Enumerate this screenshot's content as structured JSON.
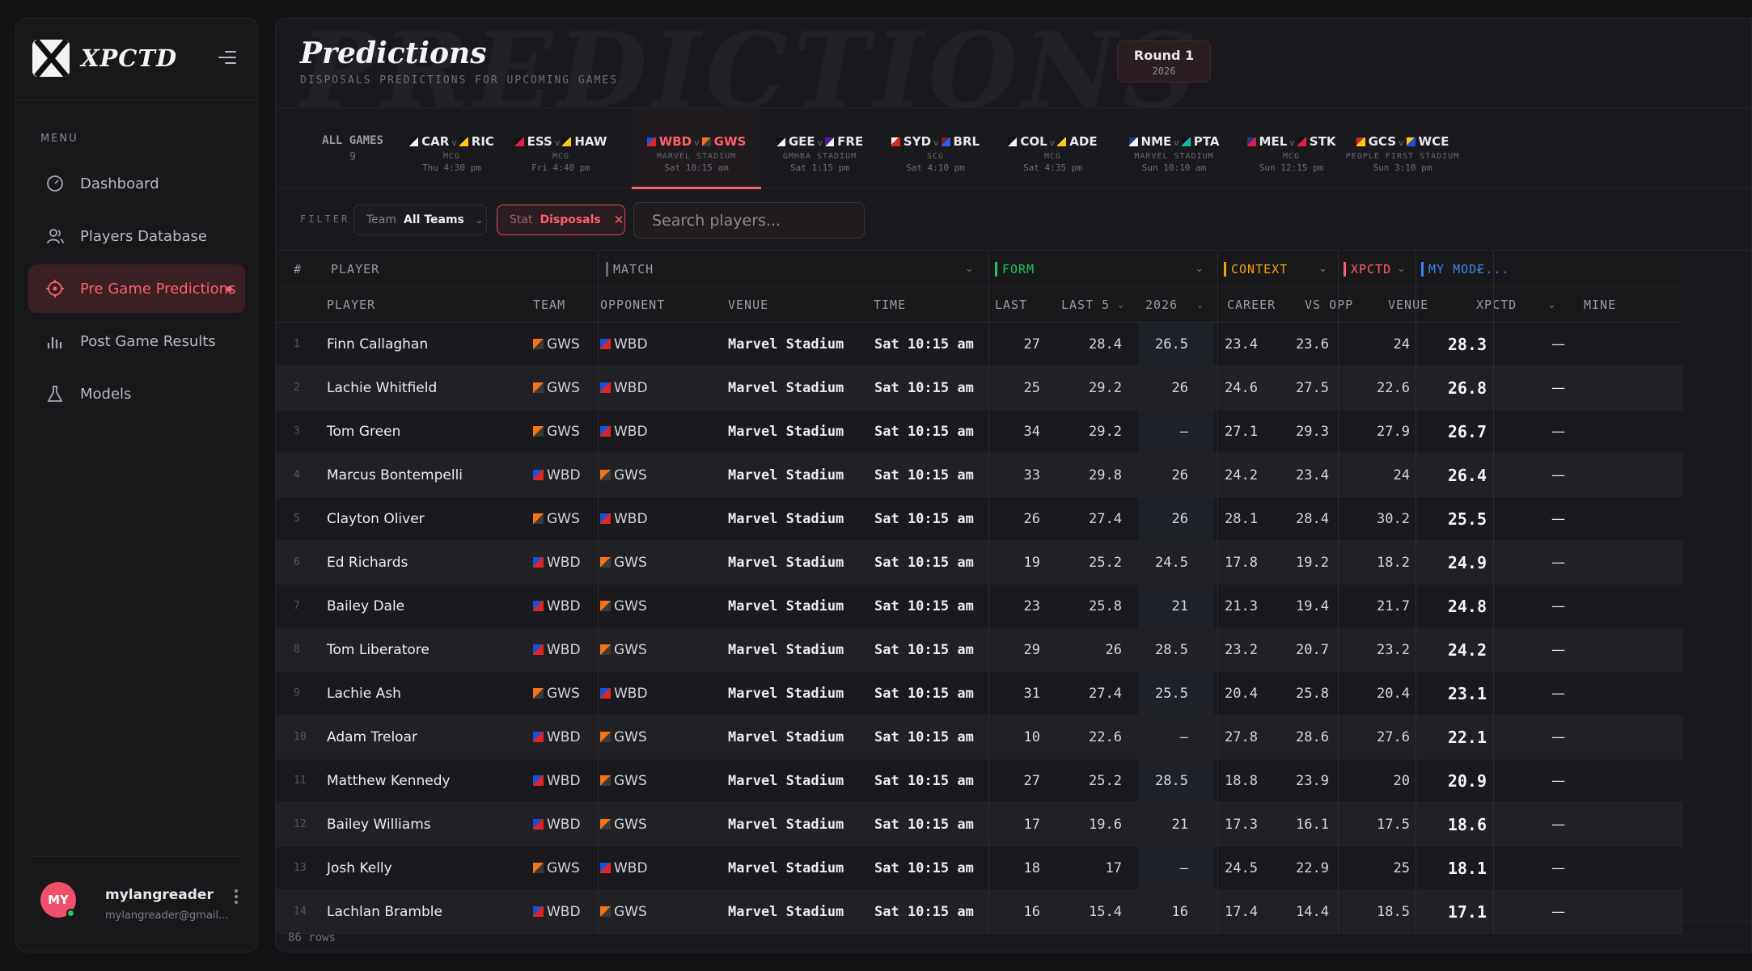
{
  "brand": {
    "name": "XPCTD"
  },
  "sidebar": {
    "menu_label": "MENU",
    "items": [
      {
        "label": "Dashboard",
        "icon": "gauge-icon"
      },
      {
        "label": "Players Database",
        "icon": "users-icon"
      },
      {
        "label": "Pre Game Predictions",
        "icon": "crosshair-icon",
        "active": true
      },
      {
        "label": "Post Game Results",
        "icon": "bar-chart-icon"
      },
      {
        "label": "Models",
        "icon": "flask-icon"
      }
    ],
    "user": {
      "initials": "MY",
      "name": "mylangreader",
      "email": "mylangreader@gmail..."
    }
  },
  "header": {
    "watermark": "PREDICTIONS",
    "title": "Predictions",
    "subtitle": "DISPOSALS PREDICTIONS FOR UPCOMING GAMES",
    "round": {
      "label": "Round 1",
      "year": "2026"
    }
  },
  "games": {
    "all": {
      "label": "ALL GAMES",
      "count": "9"
    },
    "list": [
      {
        "home": "CAR",
        "away": "RIC",
        "venue": "MCG",
        "time": "Thu 4:30 pm"
      },
      {
        "home": "ESS",
        "away": "HAW",
        "venue": "MCG",
        "time": "Fri 4:40 pm"
      },
      {
        "home": "WBD",
        "away": "GWS",
        "venue": "MARVEL STADIUM",
        "time": "Sat 10:15 am",
        "active": true
      },
      {
        "home": "GEE",
        "away": "FRE",
        "venue": "GMHBA STADIUM",
        "time": "Sat 1:15 pm"
      },
      {
        "home": "SYD",
        "away": "BRL",
        "venue": "SCG",
        "time": "Sat 4:10 pm"
      },
      {
        "home": "COL",
        "away": "ADE",
        "venue": "MCG",
        "time": "Sat 4:35 pm"
      },
      {
        "home": "NME",
        "away": "PTA",
        "venue": "MARVEL STADIUM",
        "time": "Sun 10:10 am"
      },
      {
        "home": "MEL",
        "away": "STK",
        "venue": "MCG",
        "time": "Sun 12:15 pm"
      },
      {
        "home": "GCS",
        "away": "WCE",
        "venue": "PEOPLE FIRST STADIUM",
        "time": "Sun 3:10 pm"
      }
    ],
    "separator": "v"
  },
  "filters": {
    "label": "FILTER",
    "team": {
      "key": "Team",
      "value": "All Teams"
    },
    "stat": {
      "key": "Stat",
      "value": "Disposals"
    },
    "search_placeholder": "Search players..."
  },
  "table": {
    "groups": {
      "num": "#",
      "player": "PLAYER",
      "match": "MATCH",
      "form": "FORM",
      "context": "CONTEXT",
      "xpctd": "XPCTD",
      "my_model": "MY MODE..."
    },
    "group_colors": {
      "match": "#6b6b73",
      "form": "#22c55e",
      "context": "#f59e0b",
      "xpctd": "#ff5f6d",
      "my_model": "#3b82f6"
    },
    "columns": {
      "player": "PLAYER",
      "team": "TEAM",
      "opponent": "OPPONENT",
      "venue": "VENUE",
      "time": "TIME",
      "last": "LAST",
      "last5": "LAST 5",
      "y2026": "2026",
      "career": "CAREER",
      "vs_opp": "VS OPP",
      "venue_avg": "VENUE",
      "xpctd": "XPCTD",
      "mine": "MINE"
    },
    "rows": [
      {
        "n": "1",
        "player": "Finn Callaghan",
        "team": "GWS",
        "opp": "WBD",
        "venue": "Marvel Stadium",
        "time": "Sat 10:15 am",
        "last": "27",
        "last5": "28.4",
        "y2026": "26.5",
        "career": "23.4",
        "vs_opp": "23.6",
        "venue_avg": "24",
        "xpctd": "28.3",
        "mine": "—"
      },
      {
        "n": "2",
        "player": "Lachie Whitfield",
        "team": "GWS",
        "opp": "WBD",
        "venue": "Marvel Stadium",
        "time": "Sat 10:15 am",
        "last": "25",
        "last5": "29.2",
        "y2026": "26",
        "career": "24.6",
        "vs_opp": "27.5",
        "venue_avg": "22.6",
        "xpctd": "26.8",
        "mine": "—"
      },
      {
        "n": "3",
        "player": "Tom Green",
        "team": "GWS",
        "opp": "WBD",
        "venue": "Marvel Stadium",
        "time": "Sat 10:15 am",
        "last": "34",
        "last5": "29.2",
        "y2026": "—",
        "career": "27.1",
        "vs_opp": "29.3",
        "venue_avg": "27.9",
        "xpctd": "26.7",
        "mine": "—"
      },
      {
        "n": "4",
        "player": "Marcus Bontempelli",
        "team": "WBD",
        "opp": "GWS",
        "venue": "Marvel Stadium",
        "time": "Sat 10:15 am",
        "last": "33",
        "last5": "29.8",
        "y2026": "26",
        "career": "24.2",
        "vs_opp": "23.4",
        "venue_avg": "24",
        "xpctd": "26.4",
        "mine": "—"
      },
      {
        "n": "5",
        "player": "Clayton Oliver",
        "team": "GWS",
        "opp": "WBD",
        "venue": "Marvel Stadium",
        "time": "Sat 10:15 am",
        "last": "26",
        "last5": "27.4",
        "y2026": "26",
        "career": "28.1",
        "vs_opp": "28.4",
        "venue_avg": "30.2",
        "xpctd": "25.5",
        "mine": "—"
      },
      {
        "n": "6",
        "player": "Ed Richards",
        "team": "WBD",
        "opp": "GWS",
        "venue": "Marvel Stadium",
        "time": "Sat 10:15 am",
        "last": "19",
        "last5": "25.2",
        "y2026": "24.5",
        "career": "17.8",
        "vs_opp": "19.2",
        "venue_avg": "18.2",
        "xpctd": "24.9",
        "mine": "—"
      },
      {
        "n": "7",
        "player": "Bailey Dale",
        "team": "WBD",
        "opp": "GWS",
        "venue": "Marvel Stadium",
        "time": "Sat 10:15 am",
        "last": "23",
        "last5": "25.8",
        "y2026": "21",
        "career": "21.3",
        "vs_opp": "19.4",
        "venue_avg": "21.7",
        "xpctd": "24.8",
        "mine": "—"
      },
      {
        "n": "8",
        "player": "Tom Liberatore",
        "team": "WBD",
        "opp": "GWS",
        "venue": "Marvel Stadium",
        "time": "Sat 10:15 am",
        "last": "29",
        "last5": "26",
        "y2026": "28.5",
        "career": "23.2",
        "vs_opp": "20.7",
        "venue_avg": "23.2",
        "xpctd": "24.2",
        "mine": "—"
      },
      {
        "n": "9",
        "player": "Lachie Ash",
        "team": "GWS",
        "opp": "WBD",
        "venue": "Marvel Stadium",
        "time": "Sat 10:15 am",
        "last": "31",
        "last5": "27.4",
        "y2026": "25.5",
        "career": "20.4",
        "vs_opp": "25.8",
        "venue_avg": "20.4",
        "xpctd": "23.1",
        "mine": "—"
      },
      {
        "n": "10",
        "player": "Adam Treloar",
        "team": "WBD",
        "opp": "GWS",
        "venue": "Marvel Stadium",
        "time": "Sat 10:15 am",
        "last": "10",
        "last5": "22.6",
        "y2026": "—",
        "career": "27.8",
        "vs_opp": "28.6",
        "venue_avg": "27.6",
        "xpctd": "22.1",
        "mine": "—"
      },
      {
        "n": "11",
        "player": "Matthew Kennedy",
        "team": "WBD",
        "opp": "GWS",
        "venue": "Marvel Stadium",
        "time": "Sat 10:15 am",
        "last": "27",
        "last5": "25.2",
        "y2026": "28.5",
        "career": "18.8",
        "vs_opp": "23.9",
        "venue_avg": "20",
        "xpctd": "20.9",
        "mine": "—"
      },
      {
        "n": "12",
        "player": "Bailey Williams",
        "team": "WBD",
        "opp": "GWS",
        "venue": "Marvel Stadium",
        "time": "Sat 10:15 am",
        "last": "17",
        "last5": "19.6",
        "y2026": "21",
        "career": "17.3",
        "vs_opp": "16.1",
        "venue_avg": "17.5",
        "xpctd": "18.6",
        "mine": "—"
      },
      {
        "n": "13",
        "player": "Josh Kelly",
        "team": "GWS",
        "opp": "WBD",
        "venue": "Marvel Stadium",
        "time": "Sat 10:15 am",
        "last": "18",
        "last5": "17",
        "y2026": "—",
        "career": "24.5",
        "vs_opp": "22.9",
        "venue_avg": "25",
        "xpctd": "18.1",
        "mine": "—"
      },
      {
        "n": "14",
        "player": "Lachlan Bramble",
        "team": "WBD",
        "opp": "GWS",
        "venue": "Marvel Stadium",
        "time": "Sat 10:15 am",
        "last": "16",
        "last5": "15.4",
        "y2026": "16",
        "career": "17.4",
        "vs_opp": "14.4",
        "venue_avg": "18.5",
        "xpctd": "17.1",
        "mine": "—"
      }
    ],
    "row_count": "86 rows"
  },
  "colors": {
    "accent": "#ff5f6d",
    "background": "#141417",
    "panel": "#1a1a1e"
  }
}
